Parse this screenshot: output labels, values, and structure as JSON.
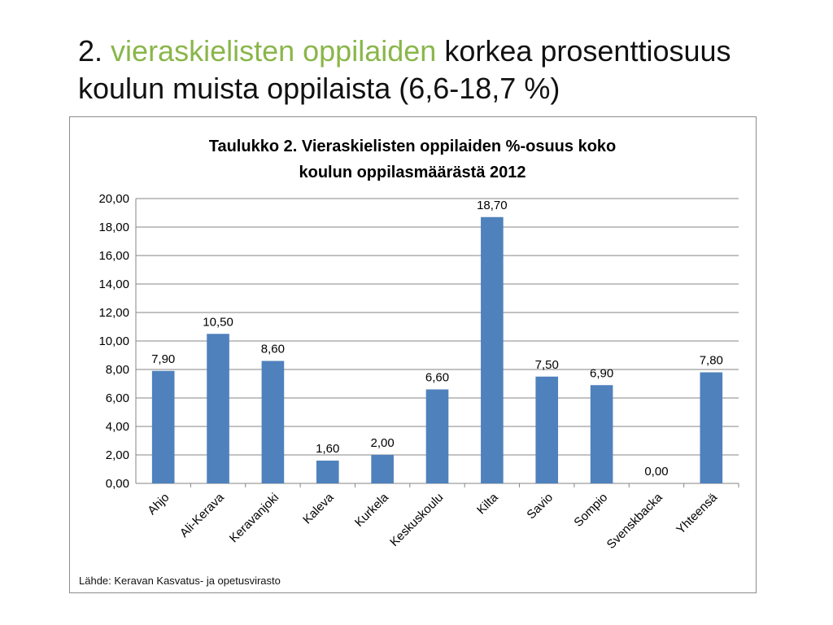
{
  "slide": {
    "title_number": "2.",
    "title_accent": "vieraskielisten oppilaiden",
    "title_rest": "korkea prosenttiosuus",
    "title_line2": "koulun muista oppilaista (6,6-18,7 %)"
  },
  "colors": {
    "accent": "#8ab64a",
    "bar": "#4f81bd",
    "grid": "#868686"
  },
  "source": "Lähde: Keravan Kasvatus- ja opetusvirasto",
  "chart_data": {
    "type": "bar",
    "title_line1": "Taulukko 2. Vieraskielisten oppilaiden %-osuus koko",
    "title_line2": "koulun oppilasmäärästä 2012",
    "categories": [
      "Ahjo",
      "Ali-Kerava",
      "Keravanjoki",
      "Kaleva",
      "Kurkela",
      "Keskuskoulu",
      "Kilta",
      "Savio",
      "Sompio",
      "Svenskbacka",
      "Yhteensä"
    ],
    "values": [
      7.9,
      10.5,
      8.6,
      1.6,
      2.0,
      6.6,
      18.7,
      7.5,
      6.9,
      0.0,
      7.8
    ],
    "value_labels": [
      "7,90",
      "10,50",
      "8,60",
      "1,60",
      "2,00",
      "6,60",
      "18,70",
      "7,50",
      "6,90",
      "0,00",
      "7,80"
    ],
    "yticks": [
      "0,00",
      "2,00",
      "4,00",
      "6,00",
      "8,00",
      "10,00",
      "12,00",
      "14,00",
      "16,00",
      "18,00",
      "20,00"
    ],
    "ylim": [
      0,
      20
    ],
    "grid": true,
    "legend": false
  }
}
